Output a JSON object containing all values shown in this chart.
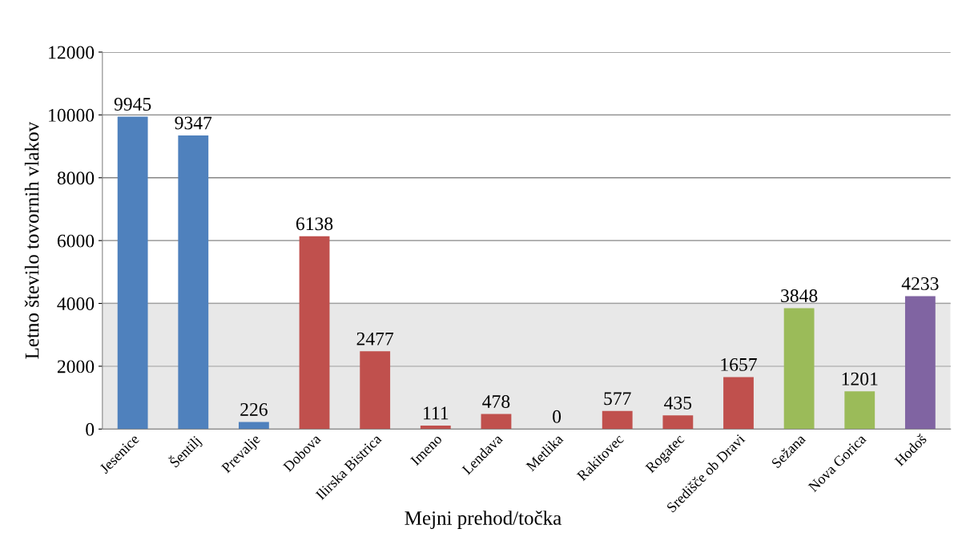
{
  "chart_data": {
    "type": "bar",
    "xlabel": "Mejni prehod/točka",
    "ylabel": "Letno število tovornih vlakov",
    "categories": [
      "Jesenice",
      "Šentilj",
      "Prevalje",
      "Dobova",
      "Ilirska Bistrica",
      "Imeno",
      "Lendava",
      "Metlika",
      "Rakitovec",
      "Rogatec",
      "Središče ob Dravi",
      "Sežana",
      "Nova Gorica",
      "Hodoš"
    ],
    "values": [
      9945,
      9347,
      226,
      6138,
      2477,
      111,
      478,
      0,
      577,
      435,
      1657,
      3848,
      1201,
      4233
    ],
    "colors": [
      "#4f81bd",
      "#4f81bd",
      "#4f81bd",
      "#c0504d",
      "#c0504d",
      "#c0504d",
      "#c0504d",
      "#c0504d",
      "#c0504d",
      "#c0504d",
      "#c0504d",
      "#9bbb59",
      "#9bbb59",
      "#8064a2"
    ],
    "ylim": [
      0,
      12000
    ],
    "yticks": [
      0,
      2000,
      4000,
      6000,
      8000,
      10000,
      12000
    ],
    "grid": "y",
    "data_labels": true,
    "bands": [
      {
        "axis": "y",
        "from": 0,
        "to": 4000,
        "color": "#d9d9d9"
      }
    ]
  }
}
